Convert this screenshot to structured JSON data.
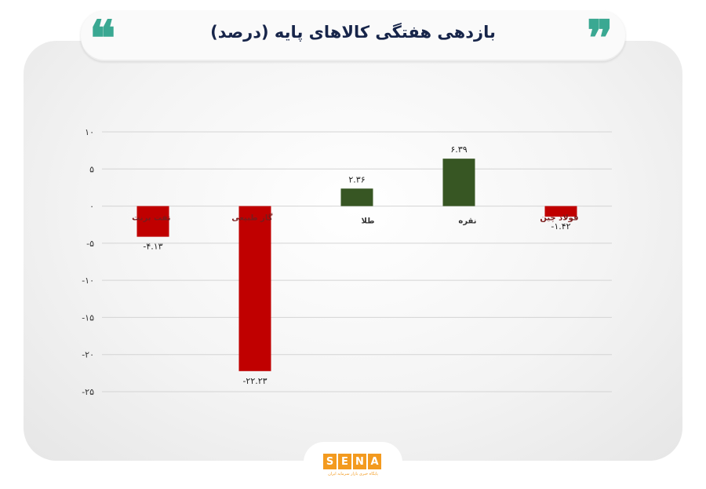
{
  "header": {
    "title": "بازدهی هفتگی کالاهای پایه (درصد)",
    "quote_left": "❝",
    "quote_right": "❞"
  },
  "colors": {
    "positive": "#375623",
    "negative": "#c00000",
    "quote": "#3aa892",
    "brand": "#f39a1f"
  },
  "chart_data": {
    "type": "bar",
    "title": "بازدهی هفتگی کالاهای پایه (درصد)",
    "categories": [
      "نفت برنت",
      "گاز طبیعی",
      "طلا",
      "نقره",
      "فولاد چین"
    ],
    "values": [
      -4.13,
      -22.23,
      2.36,
      6.39,
      -1.42
    ],
    "value_labels": [
      "-۴.۱۳",
      "-۲۲.۲۳",
      "۲.۳۶",
      "۶.۳۹",
      "-۱.۴۲"
    ],
    "yticks": [
      10,
      5,
      0,
      -5,
      -10,
      -15,
      -20,
      -25
    ],
    "ytick_labels": [
      "۱۰",
      "۵",
      "۰",
      "-۵",
      "-۱۰",
      "-۱۵",
      "-۲۰",
      "-۲۵"
    ],
    "ylim": [
      -25,
      10
    ],
    "grid": true,
    "legend": "none"
  },
  "footer": {
    "logo_letters": [
      "S",
      "E",
      "N",
      "A"
    ],
    "logo_subtitle": "پایگاه خبری بازار سرمایه ایران"
  }
}
